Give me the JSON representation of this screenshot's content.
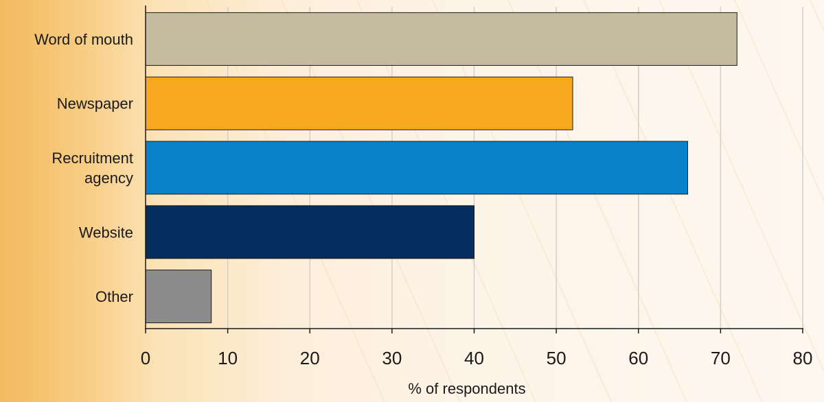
{
  "chart_data": {
    "type": "bar",
    "orientation": "horizontal",
    "categories": [
      "Word of mouth",
      "Newspaper",
      "Recruitment agency",
      "Website",
      "Other"
    ],
    "category_label_lines": [
      [
        "Word of mouth"
      ],
      [
        "Newspaper"
      ],
      [
        "Recruitment",
        "agency"
      ],
      [
        "Website"
      ],
      [
        "Other"
      ]
    ],
    "values": [
      72,
      52,
      66,
      40,
      8
    ],
    "bar_colors": [
      "#c5bb9f",
      "#f8a81f",
      "#0a82c9",
      "#032e5e",
      "#8c8c8c"
    ],
    "xlabel": "% of respondents",
    "ylabel": "",
    "xlim": [
      0,
      80
    ],
    "xticks": [
      0,
      10,
      20,
      30,
      40,
      50,
      60,
      70,
      80
    ],
    "grid": "vertical",
    "legend": "none"
  }
}
